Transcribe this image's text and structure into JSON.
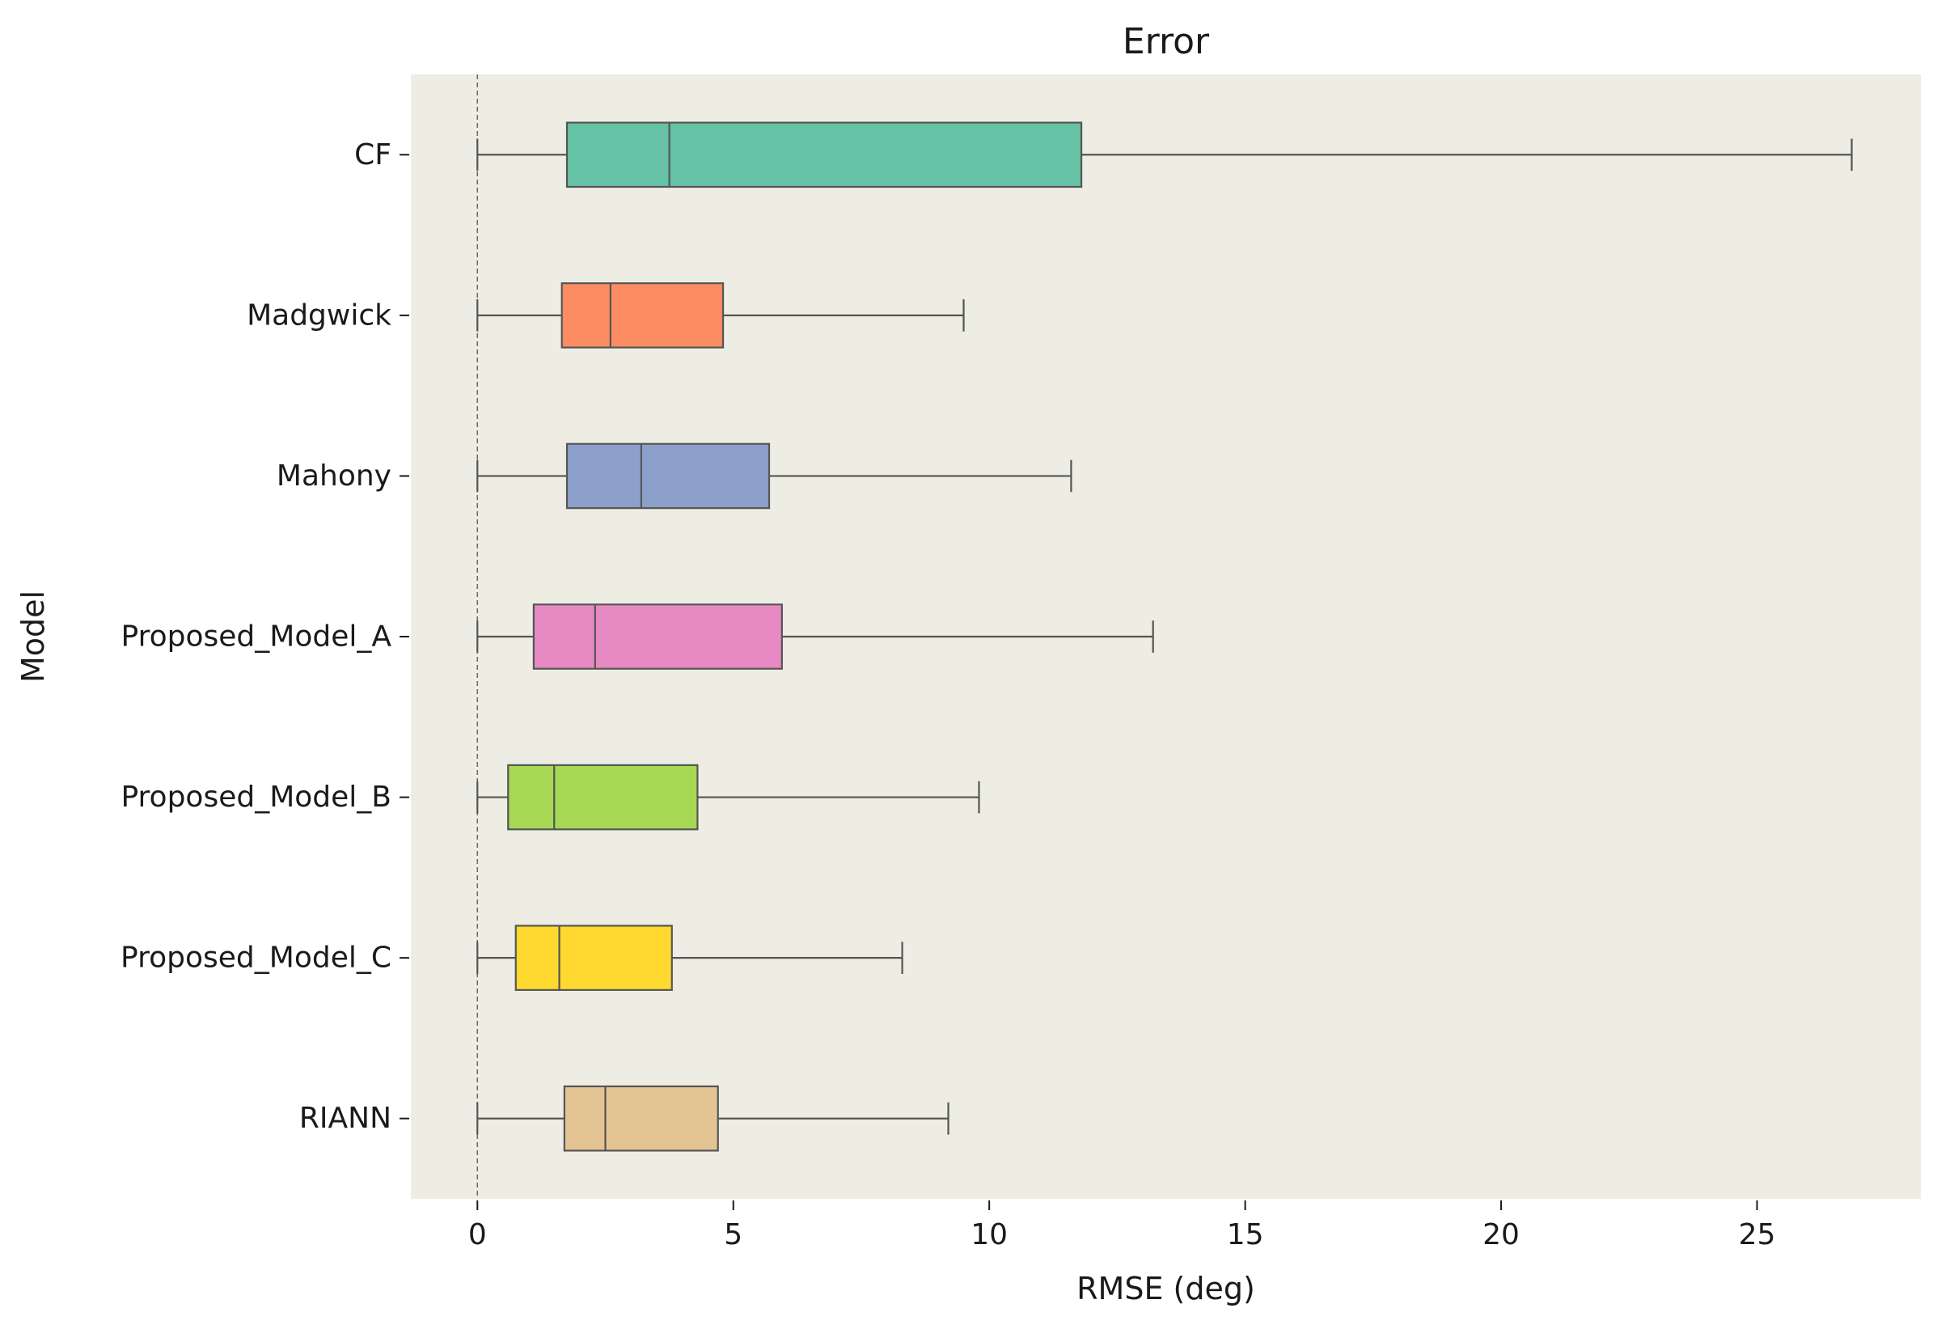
{
  "chart_data": {
    "type": "boxplot",
    "orientation": "horizontal",
    "title": "Error",
    "xlabel": "RMSE (deg)",
    "ylabel": "Model",
    "xlim": [
      -1.3,
      28.2
    ],
    "xticks": [
      0,
      5,
      10,
      15,
      20,
      25
    ],
    "grid": false,
    "legend": "none",
    "background": "#eeede4",
    "reference_line_x": 0,
    "series": [
      {
        "category": "CF",
        "whisker_low": 0.0,
        "q1": 1.75,
        "median": 3.75,
        "q3": 11.8,
        "whisker_high": 26.85,
        "color": "#66c2a5"
      },
      {
        "category": "Madgwick",
        "whisker_low": 0.0,
        "q1": 1.65,
        "median": 2.6,
        "q3": 4.8,
        "whisker_high": 9.5,
        "color": "#fc8d62"
      },
      {
        "category": "Mahony",
        "whisker_low": 0.0,
        "q1": 1.75,
        "median": 3.2,
        "q3": 5.7,
        "whisker_high": 11.6,
        "color": "#8da0cb"
      },
      {
        "category": "Proposed_Model_A",
        "whisker_low": 0.0,
        "q1": 1.1,
        "median": 2.3,
        "q3": 5.95,
        "whisker_high": 13.2,
        "color": "#e78ac3"
      },
      {
        "category": "Proposed_Model_B",
        "whisker_low": 0.0,
        "q1": 0.6,
        "median": 1.5,
        "q3": 4.3,
        "whisker_high": 9.8,
        "color": "#a6d854"
      },
      {
        "category": "Proposed_Model_C",
        "whisker_low": 0.0,
        "q1": 0.75,
        "median": 1.6,
        "q3": 3.8,
        "whisker_high": 8.3,
        "color": "#ffd92f"
      },
      {
        "category": "RIANN",
        "whisker_low": 0.0,
        "q1": 1.7,
        "median": 2.5,
        "q3": 4.7,
        "whisker_high": 9.2,
        "color": "#e5c494"
      }
    ]
  }
}
